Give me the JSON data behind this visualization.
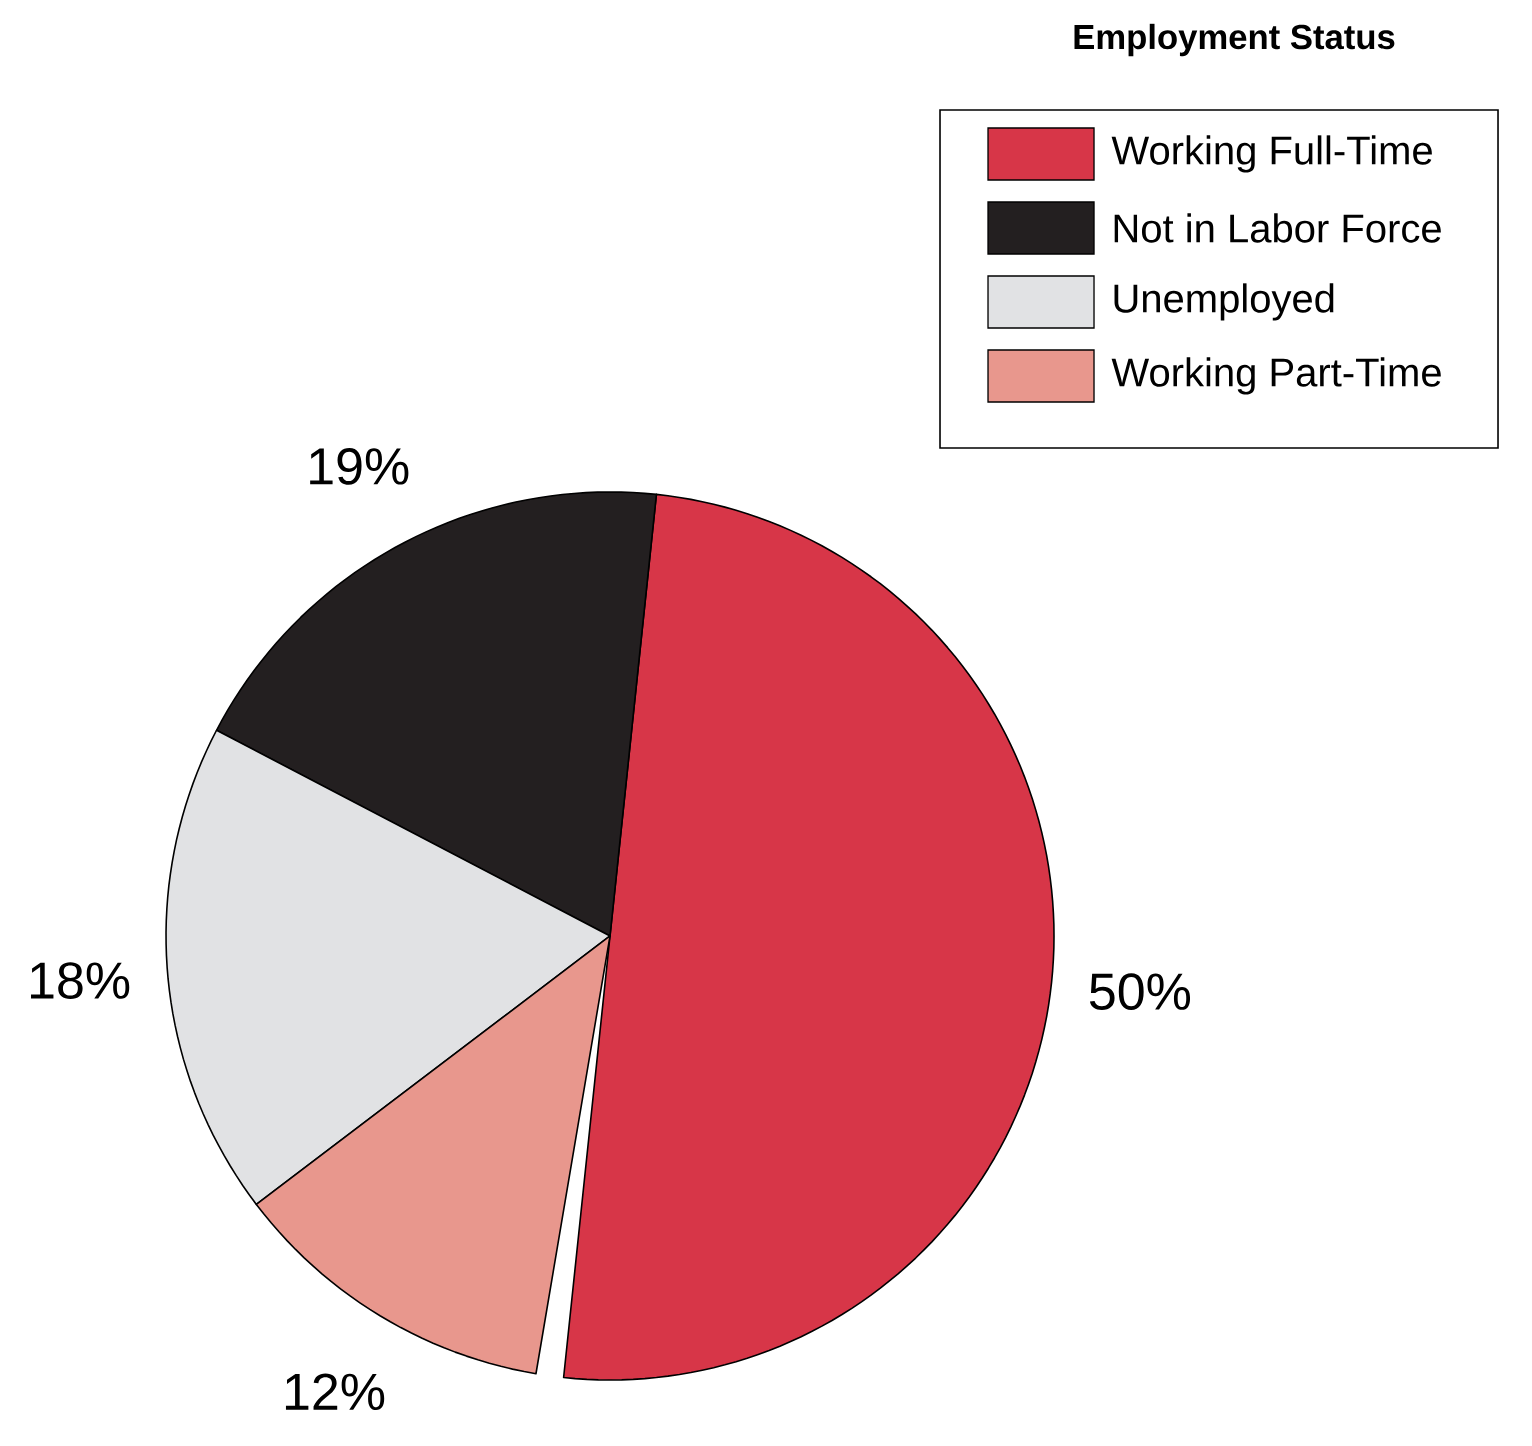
{
  "chart_data": {
    "type": "pie",
    "legend_title": "Employment Status",
    "legend": "top right",
    "categories": [
      "Working Full-Time",
      "Not in Labor Force",
      "Unemployed",
      "Working Part-Time"
    ],
    "values": [
      50,
      19,
      18,
      12
    ],
    "colors": [
      "#d73648",
      "#231f20",
      "#e1e2e4",
      "#e8978d"
    ],
    "value_labels": [
      "50%",
      "19%",
      "18%",
      "12%"
    ]
  }
}
